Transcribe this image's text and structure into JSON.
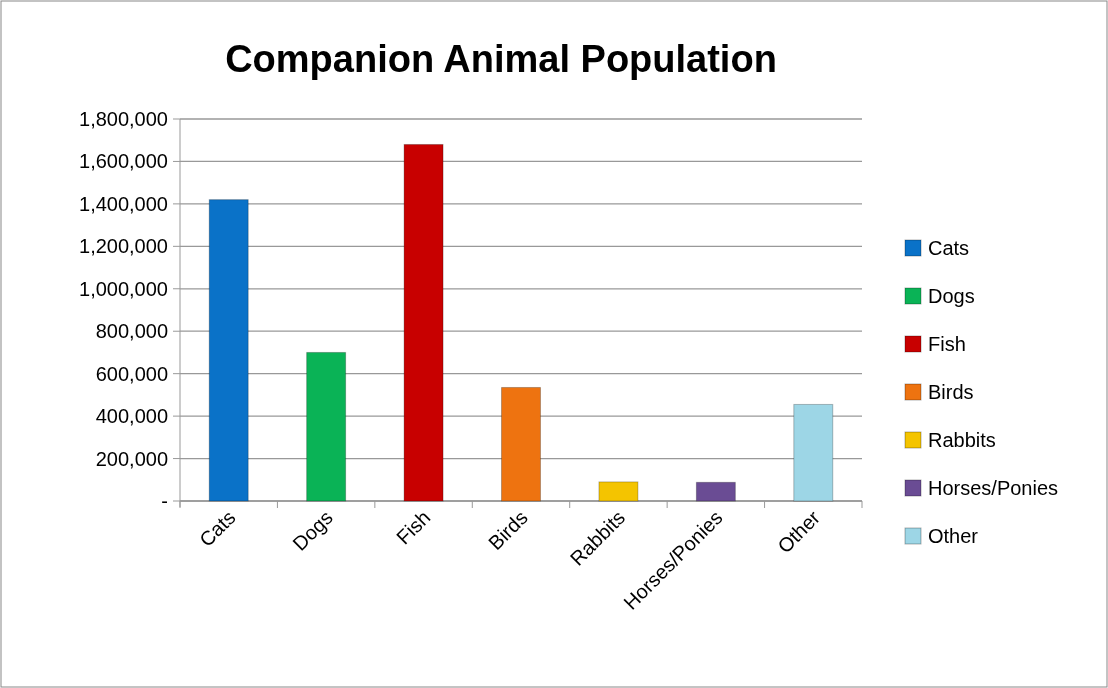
{
  "chart_data": {
    "type": "bar",
    "title": "Companion Animal Population",
    "categories": [
      "Cats",
      "Dogs",
      "Fish",
      "Birds",
      "Rabbits",
      "Horses/Ponies",
      "Other"
    ],
    "stacked": true,
    "series": [
      {
        "name": "Cats",
        "color": "#0a72c8",
        "values": [
          1420000,
          null,
          null,
          null,
          null,
          null,
          null
        ]
      },
      {
        "name": "Dogs",
        "color": "#0ab356",
        "values": [
          null,
          700000,
          null,
          null,
          null,
          null,
          null
        ]
      },
      {
        "name": "Fish",
        "color": "#c80000",
        "values": [
          null,
          null,
          1680000,
          null,
          null,
          null,
          null
        ]
      },
      {
        "name": "Birds",
        "color": "#ee7310",
        "values": [
          null,
          null,
          null,
          535000,
          null,
          null,
          null
        ]
      },
      {
        "name": "Rabbits",
        "color": "#f4c400",
        "values": [
          null,
          null,
          null,
          null,
          90000,
          null,
          null
        ]
      },
      {
        "name": "Horses/Ponies",
        "color": "#6a4c94",
        "values": [
          null,
          null,
          null,
          null,
          null,
          88000,
          null
        ]
      },
      {
        "name": "Other",
        "color": "#9dd6e6",
        "values": [
          null,
          null,
          null,
          null,
          null,
          null,
          455000
        ]
      }
    ],
    "ylim": [
      0,
      1800000
    ],
    "yticks": [
      {
        "value": 0,
        "label": "-"
      },
      {
        "value": 200000,
        "label": "200,000"
      },
      {
        "value": 400000,
        "label": "400,000"
      },
      {
        "value": 600000,
        "label": "600,000"
      },
      {
        "value": 800000,
        "label": "800,000"
      },
      {
        "value": 1000000,
        "label": "1,000,000"
      },
      {
        "value": 1200000,
        "label": "1,200,000"
      },
      {
        "value": 1400000,
        "label": "1,400,000"
      },
      {
        "value": 1600000,
        "label": "1,600,000"
      },
      {
        "value": 1800000,
        "label": "1,800,000"
      }
    ],
    "grid": "y",
    "legend": "right"
  }
}
